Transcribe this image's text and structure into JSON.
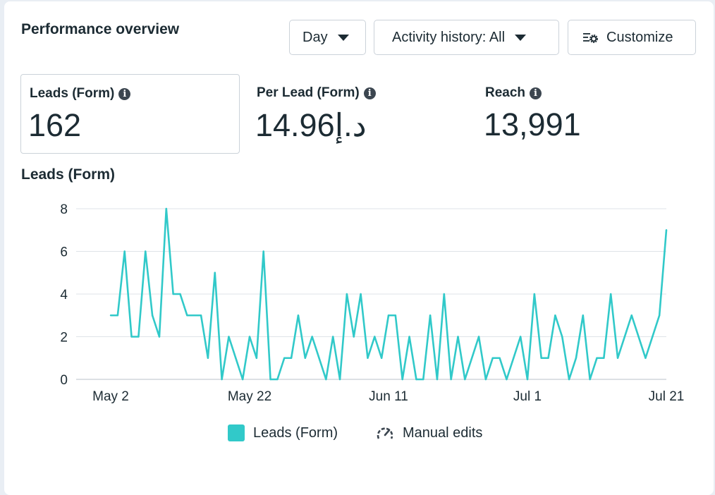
{
  "header": {
    "title": "Performance overview",
    "day_label": "Day",
    "activity_label": "Activity history: All",
    "customize_label": "Customize"
  },
  "metrics": [
    {
      "label": "Leads (Form)",
      "value": "162"
    },
    {
      "label": "Per Lead (Form)",
      "value": "14.96د.إ"
    },
    {
      "label": "Reach",
      "value": "13,991"
    }
  ],
  "icons": {
    "info": "info-icon",
    "caret": "caret-down-icon",
    "customize": "sliders-gear-icon",
    "manual_edits": "gauge-icon"
  },
  "colors": {
    "line": "#31c9c9",
    "grid": "#dfe3e8",
    "text": "#1c2b33"
  },
  "chart_data": {
    "type": "line",
    "title": "Leads (Form)",
    "xlabel": "",
    "ylabel": "",
    "ylim": [
      0,
      8
    ],
    "yticks": [
      "0",
      "2",
      "4",
      "6",
      "8"
    ],
    "xticks": [
      {
        "label": "May 2",
        "index": 0
      },
      {
        "label": "May 22",
        "index": 20
      },
      {
        "label": "Jun 11",
        "index": 40
      },
      {
        "label": "Jul 1",
        "index": 60
      },
      {
        "label": "Jul 21",
        "index": 80
      }
    ],
    "x_start": "May 2",
    "series": [
      {
        "name": "Leads (Form)",
        "color": "#31c9c9",
        "values": [
          3,
          3,
          6,
          2,
          2,
          6,
          3,
          2,
          8,
          4,
          4,
          3,
          3,
          3,
          1,
          5,
          0,
          2,
          1,
          0,
          2,
          1,
          6,
          0,
          0,
          1,
          1,
          3,
          1,
          2,
          1,
          0,
          2,
          0,
          4,
          2,
          4,
          1,
          2,
          1,
          3,
          3,
          0,
          2,
          0,
          0,
          3,
          0,
          4,
          0,
          2,
          0,
          1,
          2,
          0,
          1,
          1,
          0,
          1,
          2,
          0,
          4,
          1,
          1,
          3,
          2,
          0,
          1,
          3,
          0,
          1,
          1,
          4,
          1,
          2,
          3,
          2,
          1,
          2,
          3,
          7
        ]
      }
    ]
  },
  "legend": {
    "series_label": "Leads (Form)",
    "manual_edits_label": "Manual edits"
  }
}
